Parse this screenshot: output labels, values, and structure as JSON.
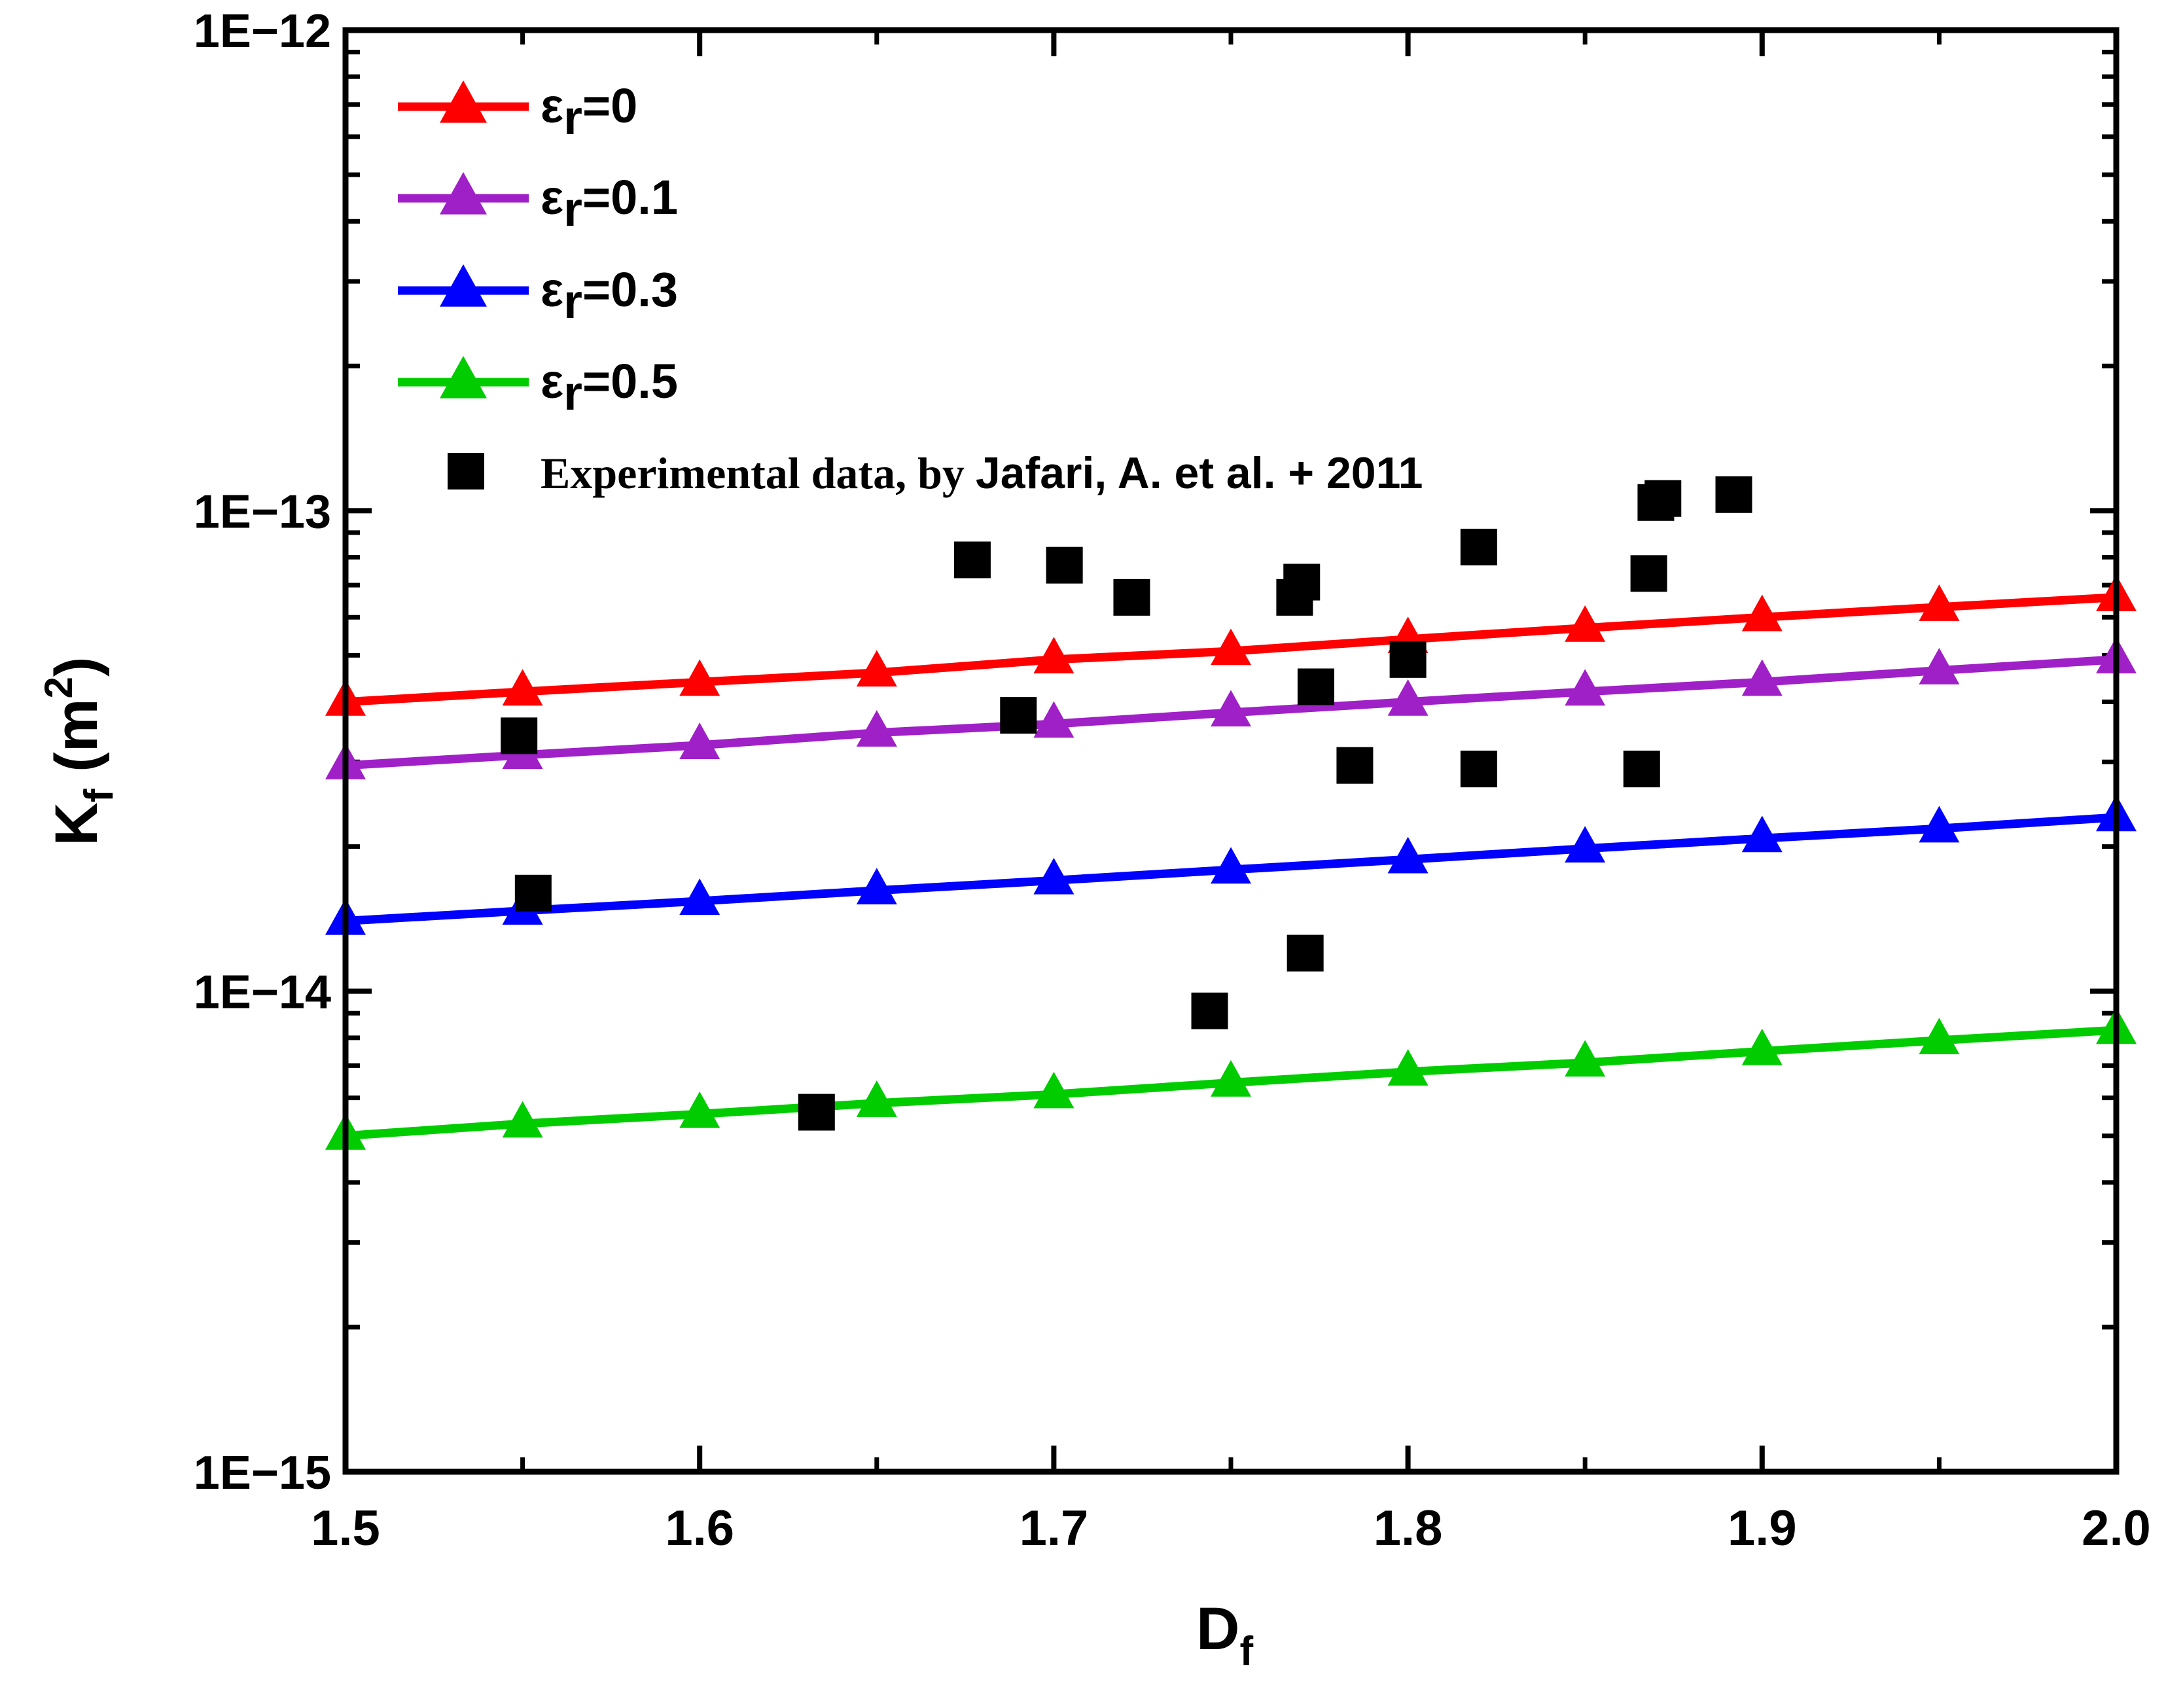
{
  "chart_data": {
    "type": "scatter",
    "title": "",
    "xlabel": "D",
    "xlabel_sub": "f",
    "ylabel": "K",
    "ylabel_sub": "f",
    "ylabel_unit_open": " (m",
    "ylabel_unit_sup": "2",
    "ylabel_unit_close": ")",
    "x_scale": "linear",
    "y_scale": "log",
    "xlim": [
      1.5,
      2.0
    ],
    "ylim": [
      1e-15,
      1e-12
    ],
    "x_ticks": [
      1.5,
      1.6,
      1.7,
      1.8,
      1.9,
      2.0
    ],
    "x_tick_labels": [
      "1.5",
      "1.6",
      "1.7",
      "1.8",
      "1.9",
      "2.0"
    ],
    "y_ticks": [
      1e-15,
      1e-14,
      1e-13,
      1e-12
    ],
    "y_tick_labels": [
      "1E−15",
      "1E−14",
      "1E−13",
      "1E−12"
    ],
    "grid": false,
    "legend_position": "top-left",
    "x": [
      1.5,
      1.55,
      1.6,
      1.65,
      1.7,
      1.75,
      1.8,
      1.85,
      1.9,
      1.95,
      2.0
    ],
    "series": [
      {
        "name": "εr=0",
        "label_symbol": "ε",
        "label_sub": "r",
        "label_value": "=0",
        "color": "#ff0000",
        "marker": "triangle",
        "values": [
          4e-14,
          4.2e-14,
          4.4e-14,
          4.6e-14,
          4.9e-14,
          5.1e-14,
          5.4e-14,
          5.7e-14,
          6e-14,
          6.3e-14,
          6.6e-14
        ]
      },
      {
        "name": "εr=0.1",
        "label_symbol": "ε",
        "label_sub": "r",
        "label_value": "=0.1",
        "color": "#a020c8",
        "marker": "triangle",
        "values": [
          2.95e-14,
          3.1e-14,
          3.25e-14,
          3.45e-14,
          3.6e-14,
          3.8e-14,
          4e-14,
          4.2e-14,
          4.4e-14,
          4.65e-14,
          4.9e-14
        ]
      },
      {
        "name": "εr=0.3",
        "label_symbol": "ε",
        "label_sub": "r",
        "label_value": "=0.3",
        "color": "#0000ff",
        "marker": "triangle",
        "values": [
          1.4e-14,
          1.47e-14,
          1.54e-14,
          1.62e-14,
          1.7e-14,
          1.79e-14,
          1.88e-14,
          1.98e-14,
          2.08e-14,
          2.18e-14,
          2.3e-14
        ]
      },
      {
        "name": "εr=0.5",
        "label_symbol": "ε",
        "label_sub": "r",
        "label_value": "=0.5",
        "color": "#00cc00",
        "marker": "triangle",
        "values": [
          5e-15,
          5.3e-15,
          5.55e-15,
          5.85e-15,
          6.1e-15,
          6.45e-15,
          6.8e-15,
          7.1e-15,
          7.5e-15,
          7.9e-15,
          8.3e-15
        ]
      }
    ],
    "experimental": {
      "name": "Experimental data, by Jafari, A. et al. + 2011",
      "label_part1": "Experimental data, by ",
      "label_part2": "Jafari, A. et al. + 2011",
      "color": "#000000",
      "marker": "square",
      "points": [
        {
          "x": 1.549,
          "y": 3.4e-14
        },
        {
          "x": 1.553,
          "y": 1.6e-14
        },
        {
          "x": 1.633,
          "y": 5.6e-15
        },
        {
          "x": 1.677,
          "y": 7.9e-14
        },
        {
          "x": 1.69,
          "y": 3.75e-14
        },
        {
          "x": 1.703,
          "y": 7.7e-14
        },
        {
          "x": 1.722,
          "y": 6.6e-14
        },
        {
          "x": 1.744,
          "y": 9.1e-15
        },
        {
          "x": 1.768,
          "y": 6.6e-14
        },
        {
          "x": 1.77,
          "y": 7.1e-14
        },
        {
          "x": 1.771,
          "y": 1.2e-14
        },
        {
          "x": 1.774,
          "y": 4.3e-14
        },
        {
          "x": 1.785,
          "y": 2.95e-14
        },
        {
          "x": 1.8,
          "y": 4.9e-14
        },
        {
          "x": 1.82,
          "y": 8.4e-14
        },
        {
          "x": 1.82,
          "y": 2.9e-14
        },
        {
          "x": 1.866,
          "y": 2.9e-14
        },
        {
          "x": 1.868,
          "y": 7.4e-14
        },
        {
          "x": 1.87,
          "y": 1.04e-13
        },
        {
          "x": 1.872,
          "y": 1.06e-13
        },
        {
          "x": 1.892,
          "y": 1.08e-13
        }
      ]
    }
  }
}
